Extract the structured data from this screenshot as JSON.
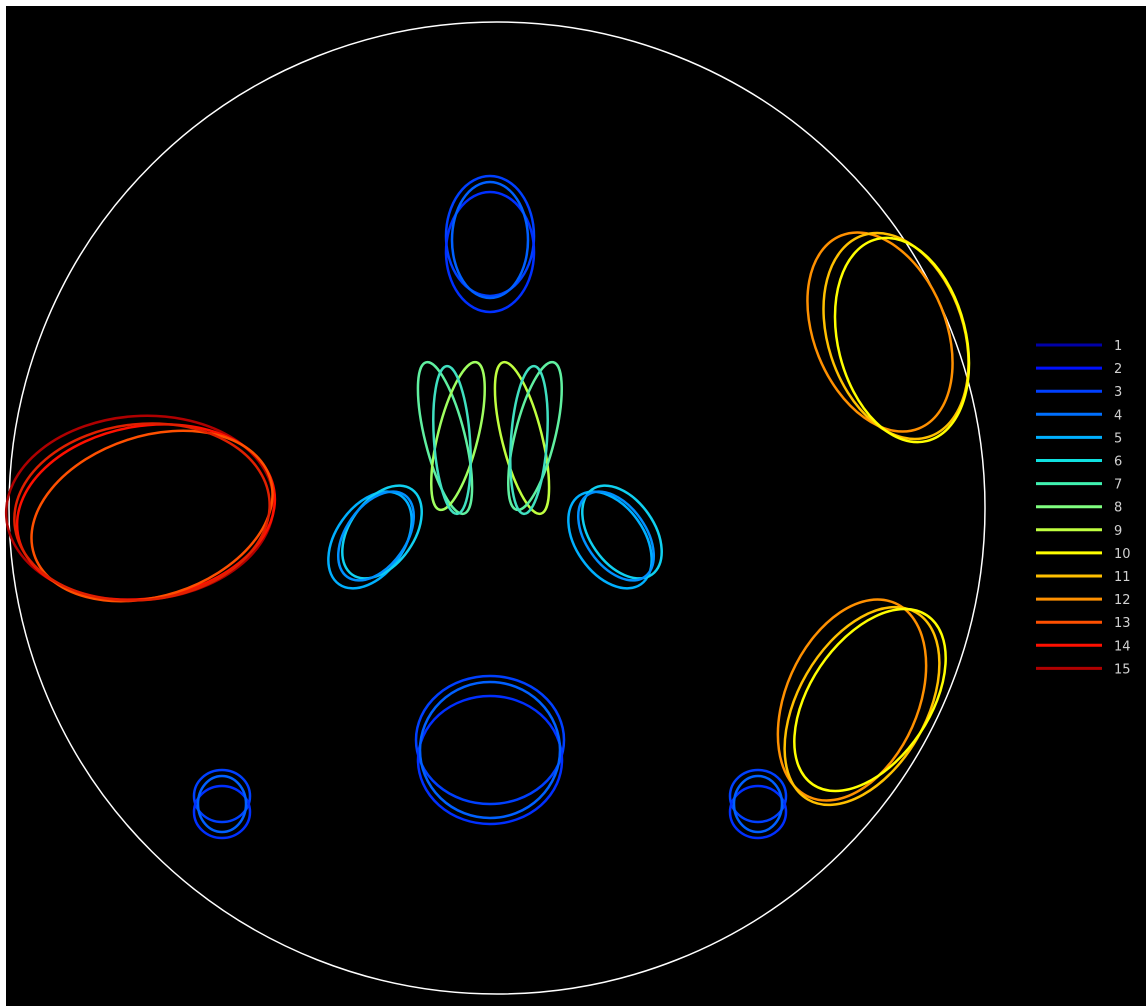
{
  "figure": {
    "background_color": "#000000",
    "boundary_color": "#ffffff",
    "legend_position": "right",
    "legend": [
      {
        "label": "1",
        "color": "#0000a8"
      },
      {
        "label": "2",
        "color": "#0010ff"
      },
      {
        "label": "3",
        "color": "#0040ff"
      },
      {
        "label": "4",
        "color": "#0070ff"
      },
      {
        "label": "5",
        "color": "#00b0ff"
      },
      {
        "label": "6",
        "color": "#10e0e0"
      },
      {
        "label": "7",
        "color": "#40f0b0"
      },
      {
        "label": "8",
        "color": "#80ff80"
      },
      {
        "label": "9",
        "color": "#c0ff40"
      },
      {
        "label": "10",
        "color": "#ffff00"
      },
      {
        "label": "11",
        "color": "#ffc000"
      },
      {
        "label": "12",
        "color": "#ff9000"
      },
      {
        "label": "13",
        "color": "#ff5000"
      },
      {
        "label": "14",
        "color": "#ff1000"
      },
      {
        "label": "15",
        "color": "#b00000"
      }
    ]
  }
}
